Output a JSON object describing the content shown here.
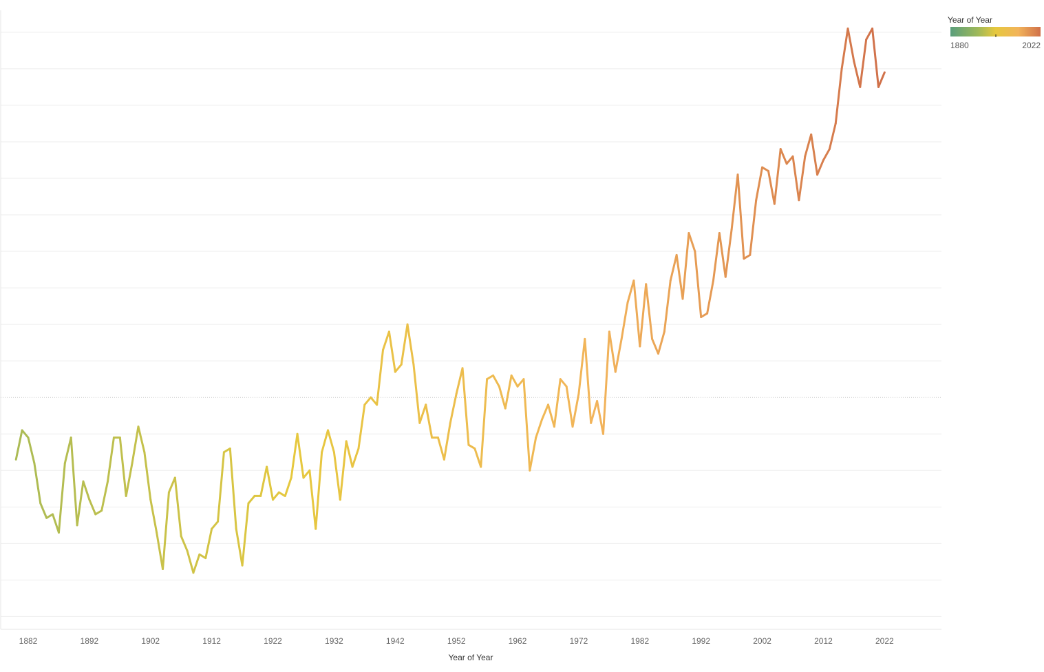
{
  "chart_data": {
    "type": "line",
    "title": "",
    "xlabel": "Year of Year",
    "ylabel": "",
    "xlim": [
      1877.5,
      2031.3
    ],
    "ylim": [
      -0.635,
      1.06
    ],
    "zero_line": 0,
    "grid": "horizontal",
    "x_ticks": [
      "1882",
      "1892",
      "1902",
      "1912",
      "1922",
      "1932",
      "1942",
      "1952",
      "1962",
      "1972",
      "1982",
      "1992",
      "2002",
      "2012",
      "2022"
    ],
    "x_tick_values": [
      1882,
      1892,
      1902,
      1912,
      1922,
      1932,
      1942,
      1952,
      1962,
      1972,
      1982,
      1992,
      2002,
      2012,
      2022
    ],
    "legend": {
      "title": "Year of Year",
      "min_label": "1880",
      "max_label": "2022",
      "position": "top-right",
      "colors": [
        "#5a9e7c",
        "#9db85a",
        "#e6c83e",
        "#f2b45a",
        "#d0704a"
      ]
    },
    "series": [
      {
        "x": [
          1880,
          1881,
          1882,
          1883,
          1884,
          1885,
          1886,
          1887,
          1888,
          1889,
          1890,
          1891,
          1892,
          1893,
          1894,
          1895,
          1896,
          1897,
          1898,
          1899,
          1900,
          1901,
          1902,
          1903,
          1904,
          1905,
          1906,
          1907,
          1908,
          1909,
          1910,
          1911,
          1912,
          1913,
          1914,
          1915,
          1916,
          1917,
          1918,
          1919,
          1920,
          1921,
          1922,
          1923,
          1924,
          1925,
          1926,
          1927,
          1928,
          1929,
          1930,
          1931,
          1932,
          1933,
          1934,
          1935,
          1936,
          1937,
          1938,
          1939,
          1940,
          1941,
          1942,
          1943,
          1944,
          1945,
          1946,
          1947,
          1948,
          1949,
          1950,
          1951,
          1952,
          1953,
          1954,
          1955,
          1956,
          1957,
          1958,
          1959,
          1960,
          1961,
          1962,
          1963,
          1964,
          1965,
          1966,
          1967,
          1968,
          1969,
          1970,
          1971,
          1972,
          1973,
          1974,
          1975,
          1976,
          1977,
          1978,
          1979,
          1980,
          1981,
          1982,
          1983,
          1984,
          1985,
          1986,
          1987,
          1988,
          1989,
          1990,
          1991,
          1992,
          1993,
          1994,
          1995,
          1996,
          1997,
          1998,
          1999,
          2000,
          2001,
          2002,
          2003,
          2004,
          2005,
          2006,
          2007,
          2008,
          2009,
          2010,
          2011,
          2012,
          2013,
          2014,
          2015,
          2016,
          2017,
          2018,
          2019,
          2020,
          2021,
          2022
        ],
        "values": [
          -0.17,
          -0.09,
          -0.11,
          -0.18,
          -0.29,
          -0.33,
          -0.32,
          -0.37,
          -0.18,
          -0.11,
          -0.35,
          -0.23,
          -0.28,
          -0.32,
          -0.31,
          -0.23,
          -0.11,
          -0.11,
          -0.27,
          -0.18,
          -0.08,
          -0.15,
          -0.28,
          -0.37,
          -0.47,
          -0.26,
          -0.22,
          -0.38,
          -0.42,
          -0.48,
          -0.43,
          -0.44,
          -0.36,
          -0.34,
          -0.15,
          -0.14,
          -0.36,
          -0.46,
          -0.29,
          -0.27,
          -0.27,
          -0.19,
          -0.28,
          -0.26,
          -0.27,
          -0.22,
          -0.1,
          -0.22,
          -0.2,
          -0.36,
          -0.15,
          -0.09,
          -0.15,
          -0.28,
          -0.12,
          -0.19,
          -0.14,
          -0.02,
          0.0,
          -0.02,
          0.13,
          0.18,
          0.07,
          0.09,
          0.2,
          0.09,
          -0.07,
          -0.02,
          -0.11,
          -0.11,
          -0.17,
          -0.07,
          0.01,
          0.08,
          -0.13,
          -0.14,
          -0.19,
          0.05,
          0.06,
          0.03,
          -0.03,
          0.06,
          0.03,
          0.05,
          -0.2,
          -0.11,
          -0.06,
          -0.02,
          -0.08,
          0.05,
          0.03,
          -0.08,
          0.01,
          0.16,
          -0.07,
          -0.01,
          -0.1,
          0.18,
          0.07,
          0.16,
          0.26,
          0.32,
          0.14,
          0.31,
          0.16,
          0.12,
          0.18,
          0.32,
          0.39,
          0.27,
          0.45,
          0.4,
          0.22,
          0.23,
          0.32,
          0.45,
          0.33,
          0.46,
          0.61,
          0.38,
          0.39,
          0.54,
          0.63,
          0.62,
          0.53,
          0.68,
          0.64,
          0.66,
          0.54,
          0.66,
          0.72,
          0.61,
          0.65,
          0.68,
          0.75,
          0.9,
          1.01,
          0.92,
          0.85,
          0.98,
          1.01,
          0.85,
          0.89
        ]
      }
    ]
  }
}
